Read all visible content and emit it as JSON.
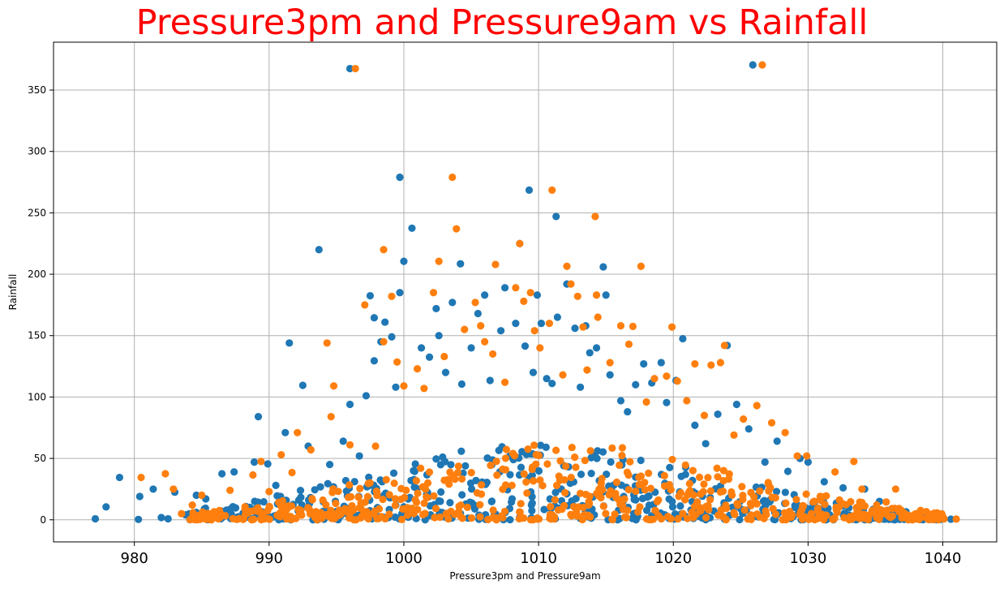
{
  "chart_data": {
    "type": "scatter",
    "title": "Pressure3pm and Pressure9am vs Rainfall",
    "title_color": "#ff0000",
    "xlabel": "Pressure3pm and Pressure9am",
    "ylabel": "Rainfall",
    "xlim": [
      974,
      1044
    ],
    "ylim": [
      -18,
      389
    ],
    "xticks": [
      980,
      990,
      1000,
      1010,
      1020,
      1030,
      1040
    ],
    "yticks": [
      0,
      50,
      100,
      150,
      200,
      250,
      300,
      350
    ],
    "grid": true,
    "series": [
      {
        "color": "#1f77b4",
        "points": [
          [
            977.1,
            0.8
          ],
          [
            977.9,
            10.5
          ],
          [
            978.9,
            34.5
          ],
          [
            980.3,
            0.3
          ],
          [
            980.4,
            19.0
          ],
          [
            981.4,
            25.0
          ],
          [
            982.0,
            1.8
          ],
          [
            982.5,
            0.8
          ],
          [
            983.0,
            22.5
          ],
          [
            983.8,
            4.0
          ],
          [
            984.6,
            20.0
          ],
          [
            985.3,
            17.0
          ],
          [
            986.0,
            4.5
          ],
          [
            986.5,
            37.5
          ],
          [
            987.4,
            39.0
          ],
          [
            988.9,
            47.0
          ],
          [
            989.2,
            84.0
          ],
          [
            989.9,
            45.5
          ],
          [
            990.5,
            28.0
          ],
          [
            991.2,
            71.0
          ],
          [
            991.5,
            144.0
          ],
          [
            992.2,
            16.0
          ],
          [
            992.5,
            109.5
          ],
          [
            992.9,
            60.0
          ],
          [
            993.7,
            220.0
          ],
          [
            994.5,
            45.0
          ],
          [
            995.5,
            64.0
          ],
          [
            996.0,
            94.0
          ],
          [
            996.0,
            367.5
          ],
          [
            996.7,
            52.0
          ],
          [
            997.2,
            101.0
          ],
          [
            997.5,
            182.5
          ],
          [
            997.8,
            129.5
          ],
          [
            997.8,
            164.5
          ],
          [
            998.3,
            145.0
          ],
          [
            998.6,
            161.0
          ],
          [
            999.1,
            149.0
          ],
          [
            999.4,
            108.0
          ],
          [
            999.7,
            279.0
          ],
          [
            999.7,
            185.0
          ],
          [
            1000.0,
            210.5
          ],
          [
            1000.6,
            237.5
          ],
          [
            1001.3,
            140.0
          ],
          [
            1001.9,
            132.5
          ],
          [
            1002.4,
            172.0
          ],
          [
            1002.6,
            150.0
          ],
          [
            1003.1,
            120.0
          ],
          [
            1003.6,
            177.0
          ],
          [
            1004.2,
            208.5
          ],
          [
            1004.3,
            110.5
          ],
          [
            1005.0,
            140.0
          ],
          [
            1005.5,
            168.0
          ],
          [
            1006.0,
            183.0
          ],
          [
            1006.4,
            113.5
          ],
          [
            1007.2,
            154.0
          ],
          [
            1007.5,
            189.0
          ],
          [
            1008.3,
            160.0
          ],
          [
            1008.6,
            225.0
          ],
          [
            1009.0,
            141.5
          ],
          [
            1009.3,
            268.5
          ],
          [
            1009.6,
            120.0
          ],
          [
            1009.9,
            183.0
          ],
          [
            1010.2,
            160.0
          ],
          [
            1010.6,
            115.0
          ],
          [
            1011.0,
            111.0
          ],
          [
            1011.3,
            247.0
          ],
          [
            1011.4,
            165.0
          ],
          [
            1012.1,
            192.0
          ],
          [
            1012.7,
            156.0
          ],
          [
            1013.1,
            108.0
          ],
          [
            1013.5,
            158.0
          ],
          [
            1013.8,
            136.0
          ],
          [
            1014.3,
            140.0
          ],
          [
            1014.8,
            206.0
          ],
          [
            1015.0,
            183.0
          ],
          [
            1015.3,
            118.0
          ],
          [
            1016.1,
            97.0
          ],
          [
            1016.6,
            88.0
          ],
          [
            1017.2,
            110.0
          ],
          [
            1017.8,
            127.0
          ],
          [
            1018.4,
            111.5
          ],
          [
            1019.1,
            128.0
          ],
          [
            1019.5,
            95.5
          ],
          [
            1020.2,
            113.5
          ],
          [
            1020.7,
            147.5
          ],
          [
            1021.6,
            77.0
          ],
          [
            1022.4,
            62.0
          ],
          [
            1023.3,
            86.0
          ],
          [
            1024.0,
            142.0
          ],
          [
            1024.7,
            94.0
          ],
          [
            1025.6,
            74.0
          ],
          [
            1025.9,
            370.5
          ],
          [
            1026.8,
            47.0
          ],
          [
            1027.7,
            64.0
          ],
          [
            1028.5,
            39.5
          ],
          [
            1029.4,
            50.0
          ],
          [
            1030.0,
            47.0
          ],
          [
            1031.2,
            31.0
          ],
          [
            1032.6,
            26.0
          ],
          [
            1034.2,
            25.0
          ],
          [
            1035.3,
            15.0
          ],
          [
            1036.7,
            5.0
          ],
          [
            1038.0,
            1.5
          ],
          [
            1039.6,
            0.8
          ],
          [
            1040.6,
            0.5
          ]
        ]
      },
      {
        "color": "#ff7f0e",
        "points": [
          [
            980.5,
            34.5
          ],
          [
            982.3,
            37.5
          ],
          [
            982.9,
            25.0
          ],
          [
            983.5,
            5.0
          ],
          [
            984.3,
            12.0
          ],
          [
            985.0,
            20.0
          ],
          [
            985.8,
            3.0
          ],
          [
            987.1,
            24.0
          ],
          [
            988.8,
            36.5
          ],
          [
            989.4,
            47.5
          ],
          [
            990.0,
            23.0
          ],
          [
            990.9,
            53.0
          ],
          [
            991.7,
            38.5
          ],
          [
            992.1,
            71.0
          ],
          [
            993.1,
            57.0
          ],
          [
            994.3,
            144.0
          ],
          [
            994.6,
            84.0
          ],
          [
            994.8,
            109.0
          ],
          [
            996.0,
            61.0
          ],
          [
            996.4,
            367.5
          ],
          [
            997.1,
            175.0
          ],
          [
            997.9,
            60.0
          ],
          [
            998.5,
            220.0
          ],
          [
            998.5,
            145.0
          ],
          [
            999.1,
            182.0
          ],
          [
            999.5,
            128.5
          ],
          [
            1000.0,
            109.0
          ],
          [
            1001.0,
            123.0
          ],
          [
            1001.5,
            107.0
          ],
          [
            1002.2,
            185.0
          ],
          [
            1002.6,
            210.5
          ],
          [
            1003.0,
            133.0
          ],
          [
            1003.6,
            279.0
          ],
          [
            1003.9,
            237.0
          ],
          [
            1004.5,
            155.0
          ],
          [
            1005.3,
            177.0
          ],
          [
            1005.7,
            158.0
          ],
          [
            1006.0,
            145.0
          ],
          [
            1006.6,
            135.0
          ],
          [
            1006.8,
            208.0
          ],
          [
            1007.5,
            112.0
          ],
          [
            1008.3,
            189.0
          ],
          [
            1008.6,
            225.0
          ],
          [
            1008.9,
            178.0
          ],
          [
            1009.4,
            185.0
          ],
          [
            1009.7,
            154.0
          ],
          [
            1010.1,
            140.0
          ],
          [
            1010.8,
            160.0
          ],
          [
            1011.0,
            268.5
          ],
          [
            1011.8,
            118.0
          ],
          [
            1012.1,
            206.5
          ],
          [
            1012.4,
            192.0
          ],
          [
            1012.9,
            182.0
          ],
          [
            1013.3,
            157.0
          ],
          [
            1013.6,
            122.0
          ],
          [
            1014.2,
            247.0
          ],
          [
            1014.3,
            183.0
          ],
          [
            1014.4,
            165.0
          ],
          [
            1015.3,
            128.0
          ],
          [
            1016.1,
            158.0
          ],
          [
            1016.7,
            143.0
          ],
          [
            1017.0,
            157.5
          ],
          [
            1017.6,
            206.5
          ],
          [
            1018.0,
            96.0
          ],
          [
            1018.6,
            115.0
          ],
          [
            1019.5,
            117.0
          ],
          [
            1019.9,
            157.0
          ],
          [
            1020.3,
            113.0
          ],
          [
            1021.0,
            97.0
          ],
          [
            1021.6,
            127.0
          ],
          [
            1022.3,
            85.0
          ],
          [
            1022.8,
            126.0
          ],
          [
            1023.5,
            128.0
          ],
          [
            1023.8,
            142.0
          ],
          [
            1024.5,
            69.0
          ],
          [
            1025.2,
            82.0
          ],
          [
            1026.2,
            93.0
          ],
          [
            1026.6,
            370.5
          ],
          [
            1027.3,
            79.0
          ],
          [
            1028.3,
            71.0
          ],
          [
            1029.2,
            52.0
          ],
          [
            1029.9,
            52.0
          ],
          [
            1030.9,
            19.0
          ],
          [
            1032.0,
            39.0
          ],
          [
            1033.4,
            47.5
          ],
          [
            1034.0,
            25.0
          ],
          [
            1035.8,
            14.5
          ],
          [
            1036.5,
            25.0
          ],
          [
            1037.0,
            4.0
          ],
          [
            1038.4,
            2.0
          ],
          [
            1040.1,
            0.8
          ],
          [
            1041.0,
            0.6
          ]
        ]
      }
    ]
  }
}
